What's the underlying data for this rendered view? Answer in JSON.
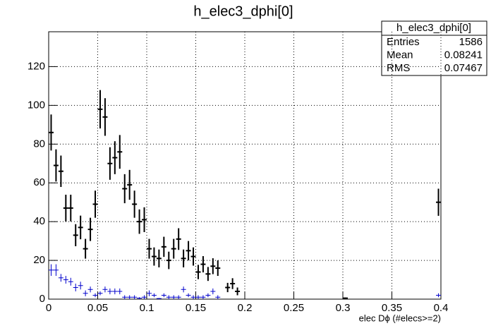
{
  "chart_data": {
    "type": "histogram-points",
    "title": "h_elec3_dphi[0]",
    "x_label": "elec Dϕ (#elecs>=2)",
    "xlim": [
      0,
      0.4
    ],
    "ylim": [
      0,
      138
    ],
    "xticks": [
      0,
      0.05,
      0.1,
      0.15,
      0.2,
      0.25,
      0.3,
      0.35,
      0.4
    ],
    "yticks": [
      0,
      20,
      40,
      60,
      80,
      100,
      120
    ],
    "grid": true,
    "series": [
      {
        "name": null,
        "color": "#000000",
        "x": [
          0.0025,
          0.0075,
          0.0125,
          0.0175,
          0.0225,
          0.0275,
          0.0325,
          0.0375,
          0.0425,
          0.0475,
          0.0525,
          0.0575,
          0.0625,
          0.0675,
          0.0725,
          0.0775,
          0.0825,
          0.0875,
          0.0925,
          0.0975,
          0.1025,
          0.1075,
          0.1125,
          0.1175,
          0.1225,
          0.1275,
          0.1325,
          0.1375,
          0.1425,
          0.1475,
          0.1525,
          0.1575,
          0.1625,
          0.1675,
          0.1725,
          0.1825,
          0.1875,
          0.1925,
          0.3025,
          0.3975
        ],
        "values": [
          86,
          69,
          66,
          47,
          47,
          33,
          37,
          26,
          36,
          49,
          98,
          94,
          70,
          73,
          76,
          57,
          59,
          49,
          40,
          41,
          26,
          22,
          21,
          27,
          20,
          26,
          31,
          21,
          25,
          22,
          14,
          18,
          13,
          17,
          16,
          6,
          8,
          4,
          0.5,
          50
        ],
        "errors": [
          9.3,
          8.3,
          8.1,
          6.9,
          6.9,
          5.7,
          6.1,
          5.1,
          6,
          7,
          9.9,
          9.7,
          8.4,
          8.5,
          8.7,
          7.5,
          7.7,
          7,
          6.3,
          6.4,
          5.1,
          4.7,
          4.6,
          5.2,
          4.5,
          5.1,
          5.6,
          4.6,
          5,
          4.7,
          3.7,
          4.2,
          3.6,
          4.1,
          4,
          2.4,
          2.8,
          2,
          0.3,
          7
        ]
      },
      {
        "name": null,
        "color": "#0000cc",
        "x": [
          0.0025,
          0.0075,
          0.0125,
          0.0175,
          0.0225,
          0.0275,
          0.0325,
          0.0375,
          0.0425,
          0.0475,
          0.0525,
          0.0575,
          0.0625,
          0.0675,
          0.0725,
          0.0775,
          0.0825,
          0.0875,
          0.0925,
          0.0975,
          0.1025,
          0.1075,
          0.1125,
          0.1175,
          0.1225,
          0.1275,
          0.1325,
          0.1375,
          0.1425,
          0.1475,
          0.1525,
          0.1575,
          0.1625,
          0.1675,
          0.1725,
          0.3975
        ],
        "values": [
          15,
          15,
          11,
          10,
          9,
          6,
          7,
          3,
          5,
          2,
          3,
          5,
          4,
          4,
          4,
          1,
          1,
          1,
          0.5,
          1,
          3,
          2,
          0.3,
          2,
          1,
          1,
          1,
          5,
          2,
          1,
          1,
          1,
          2,
          4,
          1,
          2
        ],
        "errors": [
          3,
          3,
          2,
          2,
          2,
          2,
          2,
          1.5,
          1.5,
          1,
          1,
          1.5,
          1.5,
          1.5,
          1.5,
          1,
          1,
          1,
          0.5,
          1,
          1.5,
          1,
          0.3,
          1,
          1,
          1,
          1,
          1.5,
          1,
          1,
          1,
          1,
          1,
          1.5,
          1,
          1
        ]
      }
    ],
    "stats": {
      "title": "h_elec3_dphi[0]",
      "rows": [
        {
          "label": "Entries",
          "value": 1586
        },
        {
          "label": "Mean",
          "value": 0.08241
        },
        {
          "label": "RMS",
          "value": 0.07467
        }
      ]
    }
  }
}
